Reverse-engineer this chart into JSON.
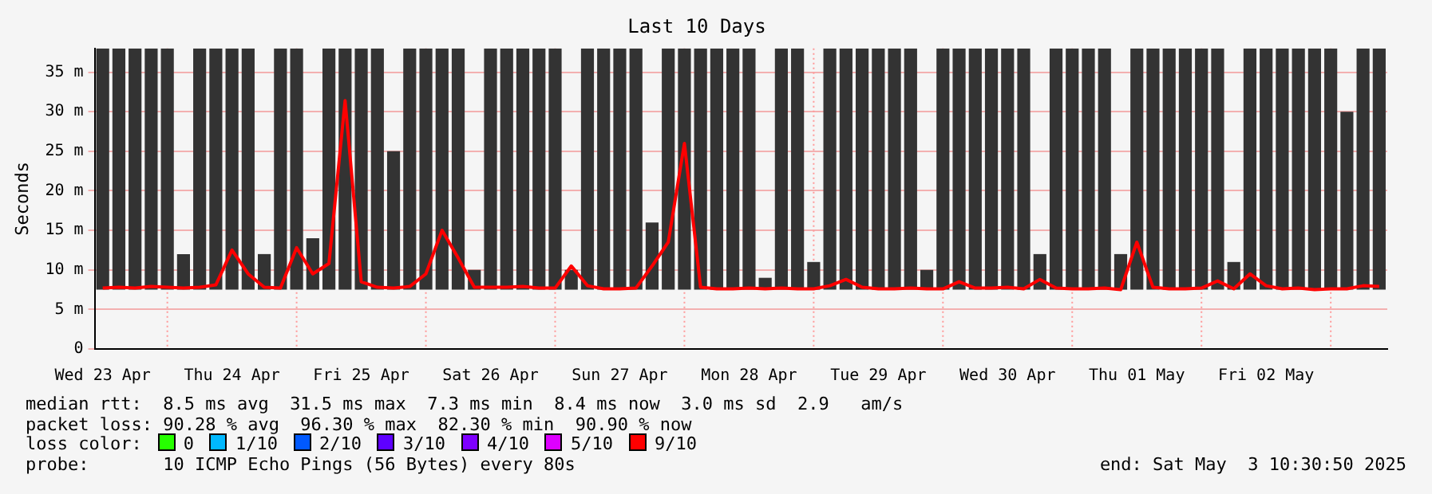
{
  "chart_data": {
    "type": "bar",
    "title": "Last 10 Days",
    "ylabel": "Seconds",
    "x": [
      "2025-04-23T12:00",
      "2025-04-23T15:00",
      "2025-04-23T18:00",
      "2025-04-23T21:00",
      "2025-04-24T00:00",
      "2025-04-24T03:00",
      "2025-04-24T06:00",
      "2025-04-24T09:00",
      "2025-04-24T12:00",
      "2025-04-24T15:00",
      "2025-04-24T18:00",
      "2025-04-24T21:00",
      "2025-04-25T00:00",
      "2025-04-25T03:00",
      "2025-04-25T06:00",
      "2025-04-25T09:00",
      "2025-04-25T12:00",
      "2025-04-25T15:00",
      "2025-04-25T18:00",
      "2025-04-25T21:00",
      "2025-04-26T00:00",
      "2025-04-26T03:00",
      "2025-04-26T06:00",
      "2025-04-26T09:00",
      "2025-04-26T12:00",
      "2025-04-26T15:00",
      "2025-04-26T18:00",
      "2025-04-26T21:00",
      "2025-04-27T00:00",
      "2025-04-27T03:00",
      "2025-04-27T06:00",
      "2025-04-27T09:00",
      "2025-04-27T12:00",
      "2025-04-27T15:00",
      "2025-04-27T18:00",
      "2025-04-27T21:00",
      "2025-04-28T00:00",
      "2025-04-28T03:00",
      "2025-04-28T06:00",
      "2025-04-28T09:00",
      "2025-04-28T12:00",
      "2025-04-28T15:00",
      "2025-04-28T18:00",
      "2025-04-28T21:00",
      "2025-04-29T00:00",
      "2025-04-29T03:00",
      "2025-04-29T06:00",
      "2025-04-29T09:00",
      "2025-04-29T12:00",
      "2025-04-29T15:00",
      "2025-04-29T18:00",
      "2025-04-29T21:00",
      "2025-04-30T00:00",
      "2025-04-30T03:00",
      "2025-04-30T06:00",
      "2025-04-30T09:00",
      "2025-04-30T12:00",
      "2025-04-30T15:00",
      "2025-04-30T18:00",
      "2025-04-30T21:00",
      "2025-05-01T00:00",
      "2025-05-01T03:00",
      "2025-05-01T06:00",
      "2025-05-01T09:00",
      "2025-05-01T12:00",
      "2025-05-01T15:00",
      "2025-05-01T18:00",
      "2025-05-01T21:00",
      "2025-05-02T00:00",
      "2025-05-02T03:00",
      "2025-05-02T06:00",
      "2025-05-02T09:00",
      "2025-05-02T12:00",
      "2025-05-02T15:00",
      "2025-05-02T18:00",
      "2025-05-02T21:00",
      "2025-05-03T00:00",
      "2025-05-03T03:00",
      "2025-05-03T06:00",
      "2025-05-03T09:00"
    ],
    "series": [
      {
        "color": "#333333",
        "base": [
          7.5,
          7.5,
          7.5,
          7.5,
          7.5,
          7.5,
          7.5,
          7.5,
          7.5,
          7.5,
          7.5,
          7.5,
          7.5,
          7.5,
          7.5,
          7.5,
          7.5,
          7.5,
          7.5,
          7.5,
          7.5,
          7.5,
          7.5,
          7.5,
          7.5,
          7.5,
          7.5,
          7.5,
          7.5,
          7.5,
          7.5,
          7.5,
          7.5,
          7.5,
          7.5,
          7.5,
          7.5,
          7.5,
          7.5,
          7.5,
          7.5,
          7.5,
          7.5,
          7.5,
          7.5,
          7.5,
          7.5,
          7.5,
          7.5,
          7.5,
          7.5,
          7.5,
          7.5,
          7.5,
          7.5,
          7.5,
          7.5,
          7.5,
          7.5,
          7.5,
          7.5,
          7.5,
          7.5,
          7.5,
          7.5,
          7.5,
          7.5,
          7.5,
          7.5,
          7.5,
          7.5,
          7.5,
          7.5,
          7.5,
          7.5,
          7.5,
          7.5,
          7.5,
          7.5,
          7.5
        ],
        "values": [
          30.5,
          30.5,
          30.5,
          30.5,
          30.5,
          4.5,
          30.5,
          30.5,
          30.5,
          30.5,
          4.5,
          30.5,
          30.5,
          6.5,
          30.5,
          30.5,
          30.5,
          30.5,
          17.5,
          30.5,
          30.5,
          30.5,
          30.5,
          2.5,
          30.5,
          30.5,
          30.5,
          30.5,
          30.5,
          2.5,
          30.5,
          30.5,
          30.5,
          30.5,
          8.5,
          30.5,
          30.5,
          30.5,
          30.5,
          30.5,
          30.5,
          1.5,
          30.5,
          30.5,
          3.5,
          30.5,
          30.5,
          30.5,
          30.5,
          30.5,
          30.5,
          2.5,
          30.5,
          30.5,
          30.5,
          30.5,
          30.5,
          30.5,
          4.5,
          30.5,
          30.5,
          30.5,
          30.5,
          4.5,
          30.5,
          30.5,
          30.5,
          30.5,
          30.5,
          30.5,
          3.5,
          30.5,
          30.5,
          30.5,
          30.5,
          30.5,
          30.5,
          22.5,
          30.5,
          30.5
        ]
      },
      {
        "name": "0",
        "type": "line",
        "color": "#26ff00",
        "values": [
          null,
          null,
          null,
          null,
          null,
          null,
          null,
          null,
          null,
          null,
          null,
          null,
          null,
          null,
          null,
          null,
          null,
          null,
          null,
          null,
          null,
          null,
          null,
          null,
          null,
          null,
          null,
          null,
          null,
          null,
          null,
          null,
          null,
          null,
          null,
          null,
          null,
          null,
          null,
          null,
          null,
          null,
          null,
          null,
          null,
          null,
          null,
          null,
          null,
          null,
          null,
          null,
          null,
          null,
          null,
          null,
          null,
          null,
          null,
          null,
          null,
          null,
          null,
          null,
          null,
          null,
          null,
          null,
          null,
          null,
          null,
          null,
          null,
          null,
          null,
          null,
          null,
          null,
          null,
          null
        ]
      },
      {
        "name": "1/10",
        "type": "line",
        "color": "#00b8ff",
        "values": [
          null,
          null,
          null,
          null,
          null,
          null,
          null,
          null,
          null,
          null,
          null,
          null,
          null,
          null,
          null,
          null,
          null,
          null,
          null,
          null,
          null,
          null,
          null,
          null,
          null,
          null,
          null,
          null,
          null,
          null,
          null,
          null,
          null,
          null,
          null,
          null,
          null,
          null,
          null,
          null,
          null,
          null,
          null,
          null,
          null,
          null,
          null,
          null,
          null,
          null,
          null,
          null,
          null,
          null,
          null,
          null,
          null,
          null,
          null,
          null,
          null,
          null,
          null,
          null,
          null,
          null,
          null,
          null,
          null,
          null,
          null,
          null,
          null,
          null,
          null,
          null,
          null,
          null,
          null,
          null
        ]
      },
      {
        "name": "2/10",
        "type": "line",
        "color": "#0059ff",
        "values": [
          null,
          null,
          null,
          null,
          null,
          null,
          null,
          null,
          null,
          null,
          null,
          null,
          null,
          null,
          null,
          null,
          null,
          null,
          null,
          null,
          null,
          null,
          null,
          null,
          null,
          null,
          null,
          null,
          null,
          null,
          null,
          null,
          null,
          null,
          null,
          null,
          null,
          null,
          null,
          null,
          null,
          null,
          null,
          null,
          null,
          null,
          null,
          null,
          null,
          null,
          null,
          null,
          null,
          null,
          null,
          null,
          null,
          null,
          null,
          null,
          null,
          null,
          null,
          null,
          null,
          null,
          null,
          null,
          null,
          null,
          null,
          null,
          null,
          null,
          null,
          null,
          null,
          null,
          null,
          null
        ]
      },
      {
        "name": "3/10",
        "type": "line",
        "color": "#5e00ff",
        "values": [
          null,
          null,
          null,
          null,
          null,
          null,
          null,
          null,
          null,
          null,
          null,
          null,
          null,
          null,
          null,
          null,
          null,
          null,
          null,
          null,
          null,
          null,
          null,
          null,
          null,
          null,
          null,
          null,
          null,
          null,
          null,
          null,
          null,
          null,
          null,
          null,
          null,
          null,
          null,
          null,
          null,
          null,
          null,
          null,
          null,
          null,
          null,
          null,
          null,
          null,
          null,
          null,
          null,
          null,
          null,
          null,
          null,
          null,
          null,
          null,
          null,
          null,
          null,
          null,
          null,
          null,
          null,
          null,
          null,
          null,
          null,
          null,
          null,
          null,
          null,
          null,
          null,
          null,
          null,
          null
        ]
      },
      {
        "name": "4/10",
        "type": "line",
        "color": "#7e00ff",
        "values": [
          null,
          null,
          null,
          null,
          null,
          null,
          null,
          null,
          null,
          null,
          null,
          null,
          null,
          null,
          null,
          null,
          null,
          null,
          null,
          null,
          null,
          null,
          null,
          null,
          null,
          null,
          null,
          null,
          null,
          null,
          null,
          null,
          null,
          null,
          null,
          null,
          null,
          null,
          null,
          null,
          null,
          null,
          null,
          null,
          null,
          null,
          null,
          null,
          null,
          null,
          null,
          null,
          null,
          null,
          null,
          null,
          null,
          null,
          null,
          null,
          null,
          null,
          null,
          null,
          null,
          null,
          null,
          null,
          null,
          null,
          null,
          null,
          null,
          null,
          null,
          null,
          null,
          null,
          null,
          null
        ]
      },
      {
        "name": "5/10",
        "type": "line",
        "color": "#dd00ff",
        "values": [
          null,
          null,
          null,
          null,
          null,
          null,
          null,
          null,
          null,
          null,
          null,
          null,
          null,
          null,
          null,
          null,
          null,
          null,
          null,
          null,
          null,
          null,
          null,
          null,
          null,
          null,
          null,
          null,
          null,
          null,
          null,
          null,
          null,
          null,
          null,
          null,
          null,
          null,
          null,
          null,
          null,
          null,
          null,
          null,
          null,
          null,
          null,
          null,
          null,
          null,
          null,
          null,
          null,
          null,
          null,
          null,
          null,
          null,
          null,
          null,
          null,
          null,
          null,
          null,
          null,
          null,
          null,
          null,
          null,
          null,
          null,
          null,
          null,
          null,
          null,
          null,
          null,
          null,
          null,
          null
        ]
      },
      {
        "name": "9/10",
        "type": "line",
        "color": "#ff0000",
        "values": [
          7.7,
          7.8,
          7.7,
          7.9,
          7.8,
          7.7,
          7.8,
          8.1,
          12.5,
          9.5,
          7.8,
          7.7,
          12.8,
          9.5,
          10.8,
          31.4,
          8.5,
          7.8,
          7.7,
          7.9,
          9.5,
          15.0,
          11.5,
          7.8,
          7.8,
          7.8,
          7.9,
          7.7,
          7.7,
          10.5,
          8.0,
          7.6,
          7.6,
          7.7,
          10.5,
          13.5,
          26.0,
          7.8,
          7.6,
          7.6,
          7.7,
          7.6,
          7.7,
          7.6,
          7.6,
          8.0,
          8.8,
          7.8,
          7.6,
          7.6,
          7.7,
          7.6,
          7.6,
          8.5,
          7.7,
          7.7,
          7.8,
          7.6,
          8.8,
          7.7,
          7.6,
          7.6,
          7.7,
          7.5,
          13.5,
          7.8,
          7.6,
          7.6,
          7.7,
          8.6,
          7.6,
          9.5,
          8.0,
          7.6,
          7.7,
          7.5,
          7.6,
          7.6,
          8.0,
          7.9
        ]
      }
    ],
    "legend_title": "loss color:",
    "legend": "bottom",
    "xlim": [
      "2025-04-23T10:30",
      "2025-05-03T10:30"
    ],
    "xticks": [
      {
        "value": "2025-04-23T12:00",
        "label": "Wed 23 Apr"
      },
      {
        "value": "2025-04-24T12:00",
        "label": "Thu 24 Apr"
      },
      {
        "value": "2025-04-25T12:00",
        "label": "Fri 25 Apr"
      },
      {
        "value": "2025-04-26T12:00",
        "label": "Sat 26 Apr"
      },
      {
        "value": "2025-04-27T12:00",
        "label": "Sun 27 Apr"
      },
      {
        "value": "2025-04-28T12:00",
        "label": "Mon 28 Apr"
      },
      {
        "value": "2025-04-29T12:00",
        "label": "Tue 29 Apr"
      },
      {
        "value": "2025-04-30T12:00",
        "label": "Wed 30 Apr"
      },
      {
        "value": "2025-05-01T12:00",
        "label": "Thu 01 May"
      },
      {
        "value": "2025-05-02T12:00",
        "label": "Fri 02 May"
      }
    ],
    "ylim": [
      0,
      38
    ],
    "yticks": [
      0,
      {
        "value": 5,
        "label": "5 m"
      },
      {
        "value": 10,
        "label": "10 m"
      },
      {
        "value": 15,
        "label": "15 m"
      },
      {
        "value": 20,
        "label": "20 m"
      },
      {
        "value": 25,
        "label": "25 m"
      },
      {
        "value": 30,
        "label": "30 m"
      },
      {
        "value": 35,
        "label": "35 m"
      }
    ],
    "grid": "y",
    "marker": "none",
    "ref_lines": [
      {
        "axis": "x",
        "value": "2025-04-24T00:00",
        "color": "#ff9999",
        "line_style": "dotted"
      },
      {
        "axis": "x",
        "value": "2025-04-25T00:00",
        "color": "#ff9999",
        "line_style": "dotted"
      },
      {
        "axis": "x",
        "value": "2025-04-26T00:00",
        "color": "#ff9999",
        "line_style": "dotted"
      },
      {
        "axis": "x",
        "value": "2025-04-27T00:00",
        "color": "#ff9999",
        "line_style": "dotted"
      },
      {
        "axis": "x",
        "value": "2025-04-28T00:00",
        "color": "#ff9999",
        "line_style": "dotted"
      },
      {
        "axis": "x",
        "value": "2025-04-29T00:00",
        "color": "#ff9999",
        "line_style": "dotted"
      },
      {
        "axis": "x",
        "value": "2025-04-30T00:00",
        "color": "#ff9999",
        "line_style": "dotted"
      },
      {
        "axis": "x",
        "value": "2025-05-01T00:00",
        "color": "#ff9999",
        "line_style": "dotted"
      },
      {
        "axis": "x",
        "value": "2025-05-02T00:00",
        "color": "#ff9999",
        "line_style": "dotted"
      },
      {
        "axis": "x",
        "value": "2025-05-03T00:00",
        "color": "#ff9999",
        "line_style": "dotted"
      }
    ],
    "annotations": [
      "median rtt:  8.5 ms avg  31.5 ms max  7.3 ms min  8.4 ms now  3.0 ms sd  2.9   am/s",
      "packet loss: 90.28 % avg  96.30 % max  82.30 % min  90.90 % now",
      "probe:       10 ICMP Echo Pings (56 Bytes) every 80s",
      "end: Sat May  3 10:30:50 2025"
    ]
  }
}
